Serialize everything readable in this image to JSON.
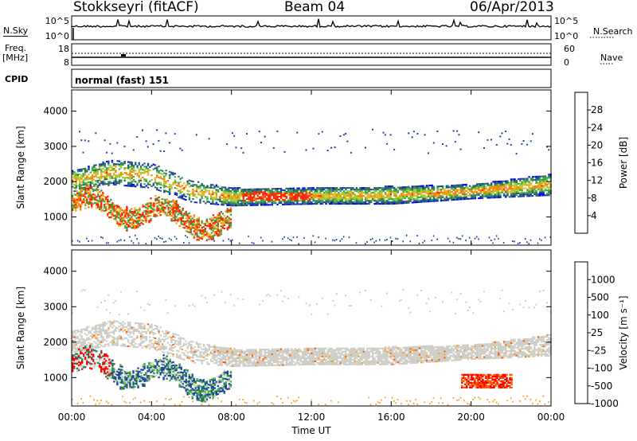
{
  "header": {
    "station": "Stokkseyri (fitACF)",
    "beam": "Beam 04",
    "date": "06/Apr/2013"
  },
  "strips": {
    "nsky_label": "N.Sky",
    "nsky_ticks": [
      "10^5",
      "10^0"
    ],
    "nsearch_label": "N.Search",
    "freq_label_1": "Freq.",
    "freq_label_2": "[MHz]",
    "freq_ticks": [
      "18",
      "8"
    ],
    "nave_label": "Nave",
    "nave_ticks": [
      "60",
      "0"
    ],
    "cpid_label": "CPID",
    "cpid_value": "normal (fast) 151"
  },
  "chart_data": [
    {
      "type": "heatmap",
      "name": "power",
      "ylabel": "Slant Range [km]",
      "ylim": [
        200,
        4600
      ],
      "y_ticks": [
        "4000",
        "3000",
        "2000",
        "1000"
      ],
      "colorbar_label": "Power [dB]",
      "colorbar_ticks": [
        "28",
        "24",
        "20",
        "16",
        "12",
        "8",
        "4"
      ],
      "colorbar_colors": [
        "#0000ff",
        "#1f3fa8",
        "#2e6e56",
        "#3aa24a",
        "#8fd02e",
        "#e8b82a",
        "#ff7f00",
        "#ff2400"
      ]
    },
    {
      "type": "heatmap",
      "name": "velocity",
      "ylabel": "Slant Range [km]",
      "ylim": [
        200,
        4600
      ],
      "y_ticks": [
        "4000",
        "3000",
        "2000",
        "1000"
      ],
      "colorbar_label": "Velocity [m s⁻¹]",
      "colorbar_ticks": [
        "1000",
        "500",
        "100",
        "25",
        "-25",
        "-100",
        "-500",
        "-1000"
      ],
      "colorbar_colors": [
        "#1e3ea8",
        "#2c7a5a",
        "#3fbb35",
        "#cdcdc6",
        "#cdcdc6",
        "#ff9a1a",
        "#ff5a00",
        "#ff0000"
      ]
    }
  ],
  "time_axis": {
    "ticks": [
      "00:00",
      "04:00",
      "08:00",
      "12:00",
      "16:00",
      "20:00",
      "00:00"
    ],
    "label": "Time UT"
  }
}
